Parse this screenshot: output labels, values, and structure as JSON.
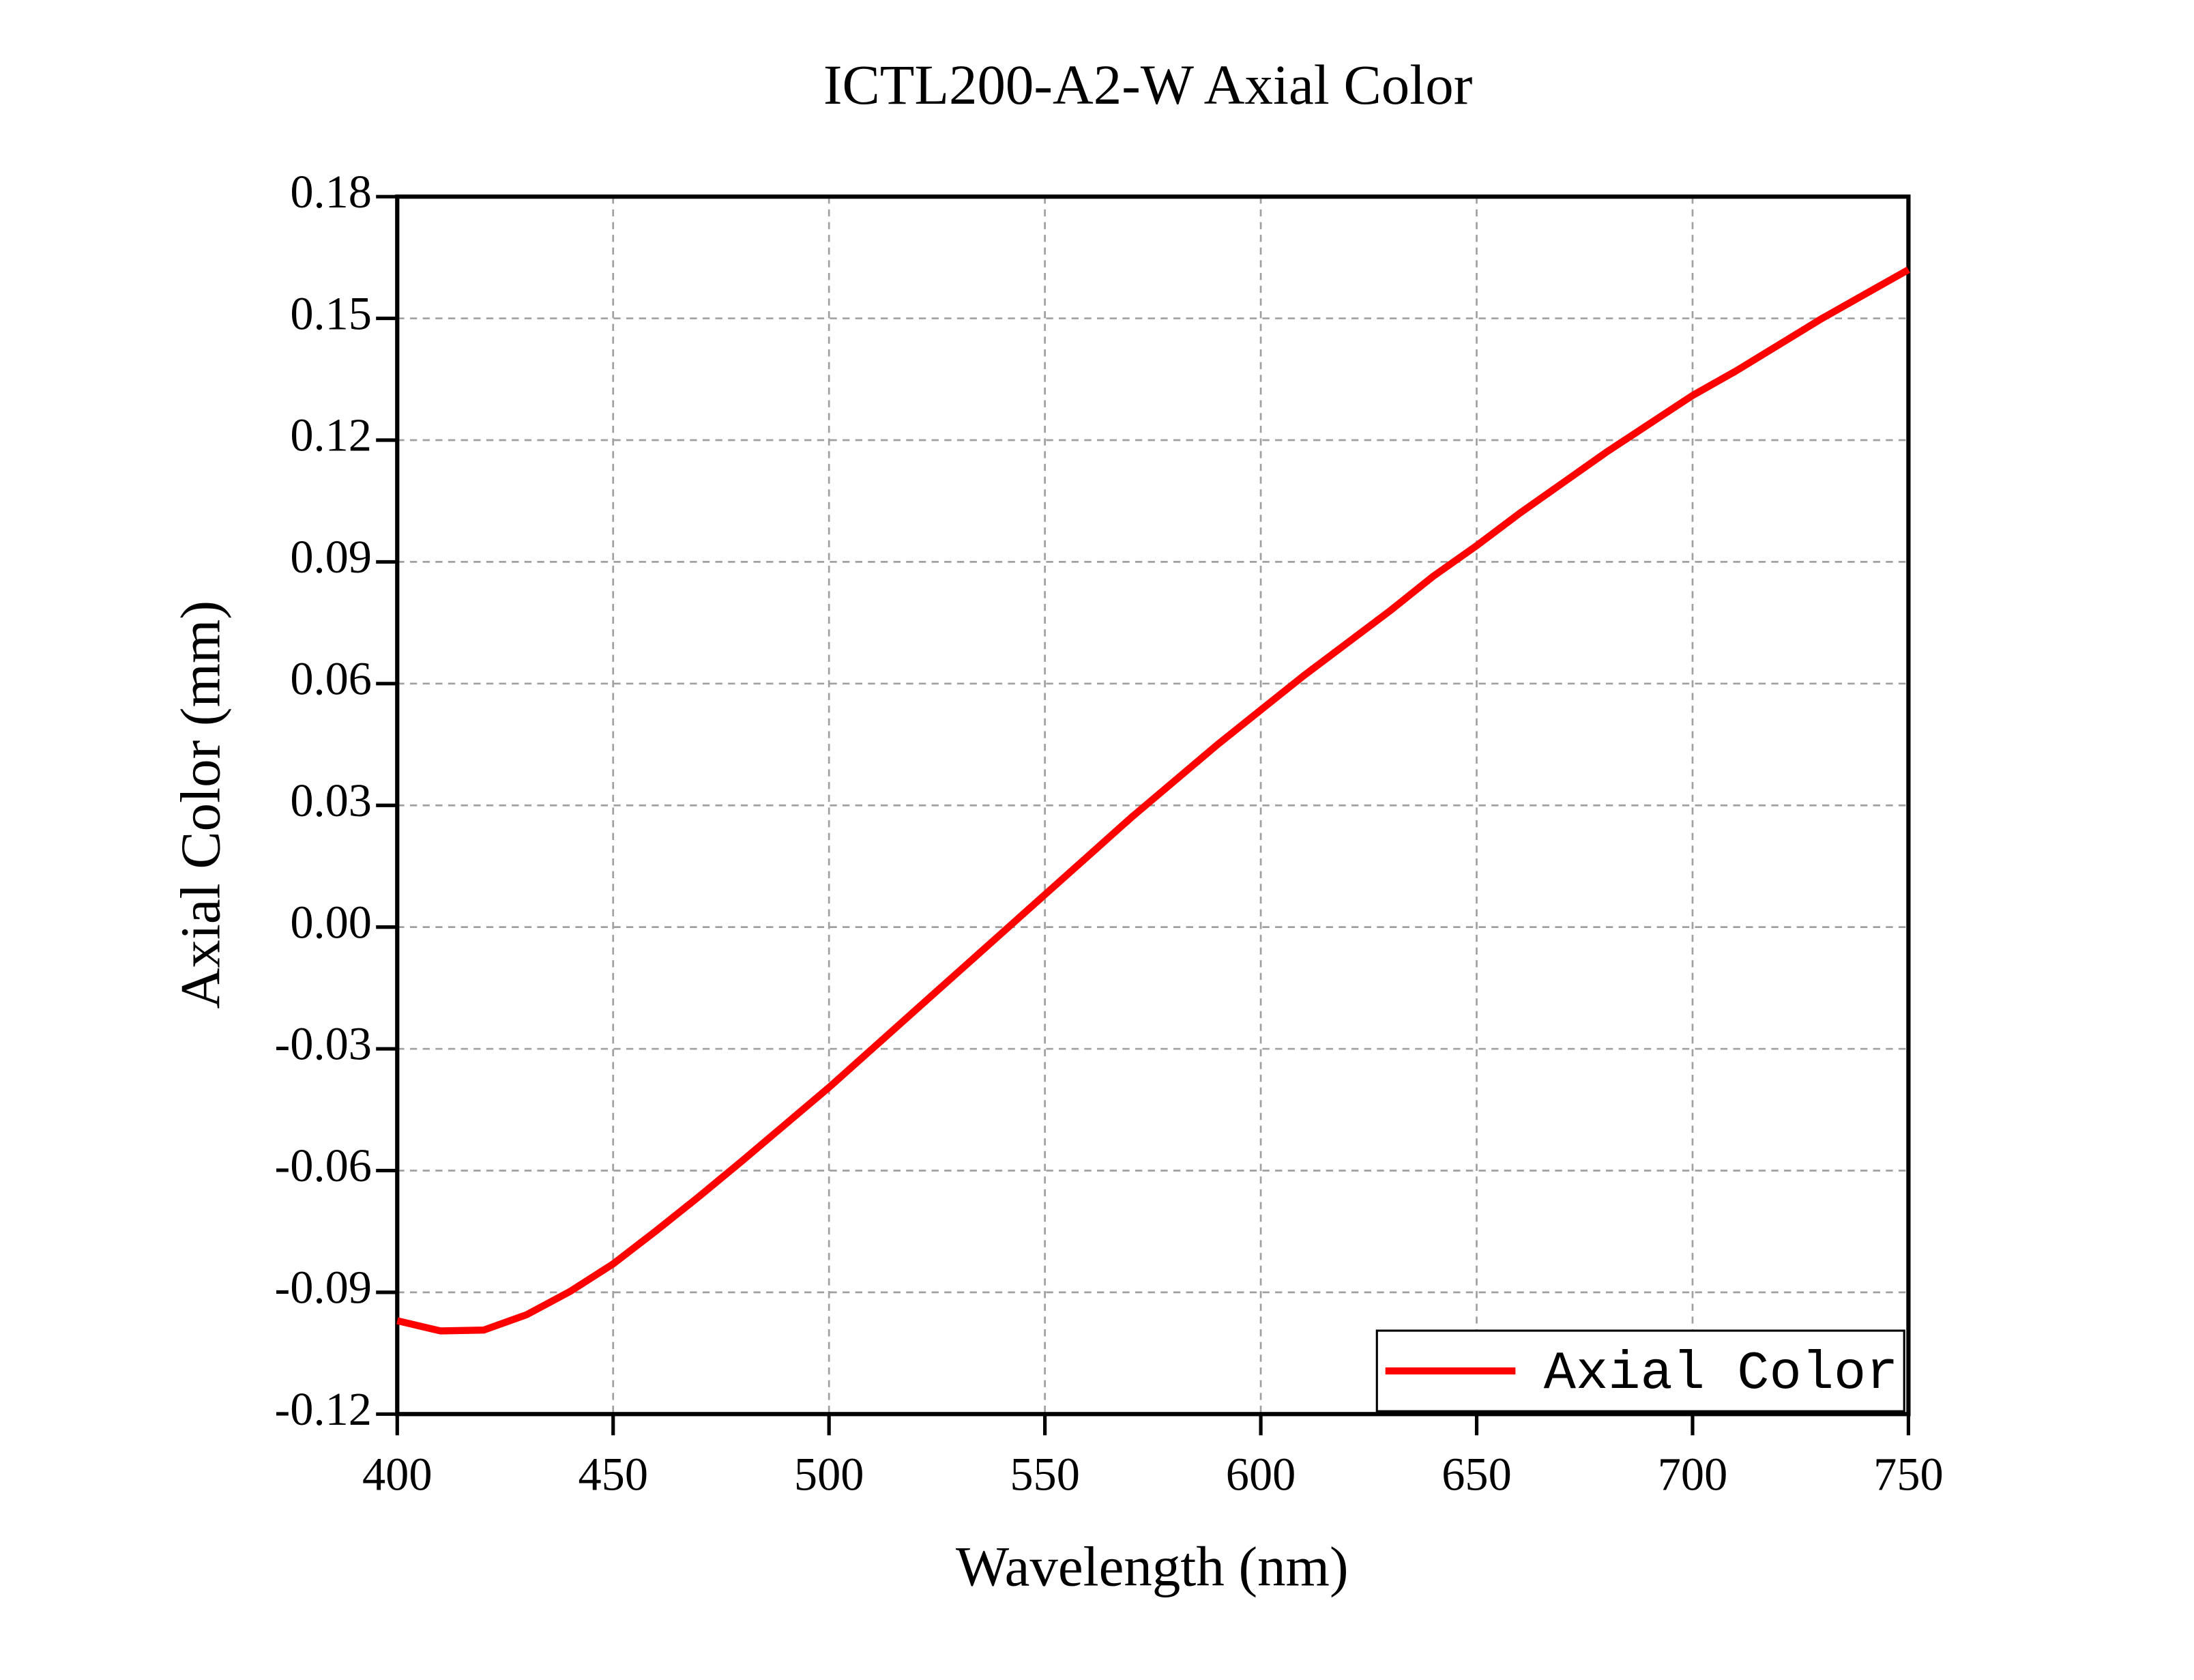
{
  "chart_data": {
    "type": "line",
    "title": "ICTL200-A2-W Axial Color",
    "x_label": "Wavelength (nm)",
    "y_label": "Axial Color (mm)",
    "x": [
      400,
      410,
      420,
      430,
      440,
      450,
      460,
      470,
      480,
      490,
      500,
      510,
      520,
      530,
      540,
      550,
      560,
      570,
      580,
      590,
      600,
      610,
      620,
      630,
      640,
      650,
      660,
      670,
      680,
      690,
      700,
      710,
      720,
      730,
      740,
      750
    ],
    "series": [
      {
        "name": "Axial Color",
        "color": "#ff0000",
        "values": [
          -0.097,
          -0.0995,
          -0.0993,
          -0.0955,
          -0.0898,
          -0.083,
          -0.0748,
          -0.0663,
          -0.0575,
          -0.0485,
          -0.0395,
          -0.03,
          -0.0205,
          -0.011,
          -0.0015,
          0.008,
          0.0175,
          0.027,
          0.036,
          0.045,
          0.0535,
          0.062,
          0.07,
          0.078,
          0.0865,
          0.094,
          0.102,
          0.1095,
          0.117,
          0.124,
          0.131,
          0.137,
          0.1435,
          0.15,
          0.156,
          0.162
        ]
      }
    ],
    "xlim": [
      400,
      750
    ],
    "xticks": [
      400,
      450,
      500,
      550,
      600,
      650,
      700,
      750
    ],
    "ylim": [
      -0.12,
      0.18
    ],
    "yticks": [
      0.18,
      0.15,
      0.12,
      0.09,
      0.06,
      0.03,
      {
        "value": 0,
        "label": "0.00"
      },
      -0.03,
      -0.06,
      -0.09,
      -0.12
    ],
    "grid": true,
    "legend": "lower right"
  }
}
